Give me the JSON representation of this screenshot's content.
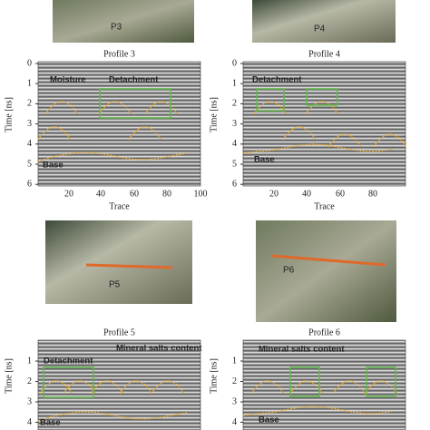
{
  "figure": {
    "top_photos": [
      {
        "label": "P3"
      },
      {
        "label": "P4"
      }
    ],
    "middle_photos": [
      {
        "label": "P5"
      },
      {
        "label": "P6"
      }
    ],
    "profiles": [
      {
        "title": "Profile 3",
        "y_label": "Time [ns]",
        "x_label": "Trace",
        "y_ticks": [
          "0",
          "1",
          "2",
          "3",
          "4",
          "5",
          "6"
        ],
        "x_ticks": [
          "20",
          "40",
          "60",
          "80",
          "100"
        ],
        "annotations": [
          "Moisture",
          "Detachment",
          "Base"
        ]
      },
      {
        "title": "Profile 4",
        "y_label": "Time [ns]",
        "x_label": "Trace",
        "y_ticks": [
          "0",
          "1",
          "2",
          "3",
          "4",
          "5",
          "6"
        ],
        "x_ticks": [
          "20",
          "40",
          "60",
          "80"
        ],
        "annotations": [
          "Detachment",
          "Base"
        ]
      },
      {
        "title": "Profile 5",
        "y_label": "Time [ns]",
        "y_ticks": [
          "1",
          "2",
          "3",
          "4"
        ],
        "annotations": [
          "Detachment",
          "Mineral salts content",
          "Base"
        ]
      },
      {
        "title": "Profile 6",
        "y_label": "Time [ns]",
        "y_ticks": [
          "1",
          "2",
          "3",
          "4"
        ],
        "annotations": [
          "Mineral salts content",
          "Base"
        ]
      }
    ]
  }
}
